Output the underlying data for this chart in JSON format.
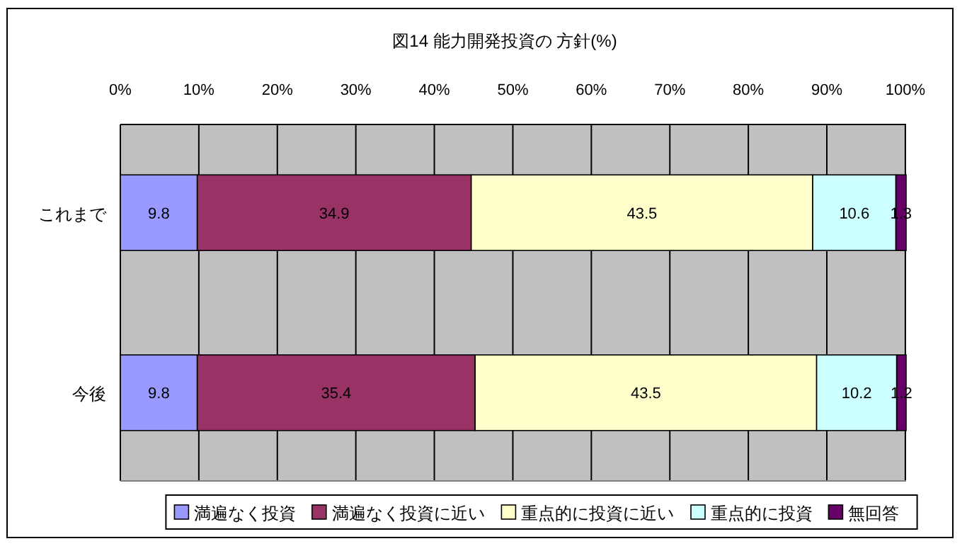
{
  "chart_data": {
    "type": "bar",
    "orientation": "horizontal",
    "stacked": true,
    "title": "図14  能力開発投資の 方針(%)",
    "categories": [
      "これまで",
      "今後"
    ],
    "series": [
      {
        "name": "満遍なく投資",
        "color": "#9999ff",
        "values": [
          9.8,
          9.8
        ]
      },
      {
        "name": "満遍なく投資に近い",
        "color": "#993366",
        "values": [
          34.9,
          35.4
        ]
      },
      {
        "name": "重点的に投資に近い",
        "color": "#ffffcc",
        "values": [
          43.5,
          43.5
        ]
      },
      {
        "name": "重点的に投資",
        "color": "#ccffff",
        "values": [
          10.6,
          10.2
        ]
      },
      {
        "name": "無回答",
        "color": "#660066",
        "values": [
          1.3,
          1.2
        ]
      }
    ],
    "xlim": [
      0,
      100.1
    ],
    "xticks": [
      {
        "value": 0,
        "label": "0%"
      },
      {
        "value": 10,
        "label": "10%"
      },
      {
        "value": 20,
        "label": "20%"
      },
      {
        "value": 30,
        "label": "30%"
      },
      {
        "value": 40,
        "label": "40%"
      },
      {
        "value": 50,
        "label": "50%"
      },
      {
        "value": 60,
        "label": "60%"
      },
      {
        "value": 70,
        "label": "70%"
      },
      {
        "value": 80,
        "label": "80%"
      },
      {
        "value": 90,
        "label": "90%"
      },
      {
        "value": 100,
        "label": "100%"
      }
    ],
    "grid": "x",
    "legend": "bottom",
    "data_labels": true
  }
}
